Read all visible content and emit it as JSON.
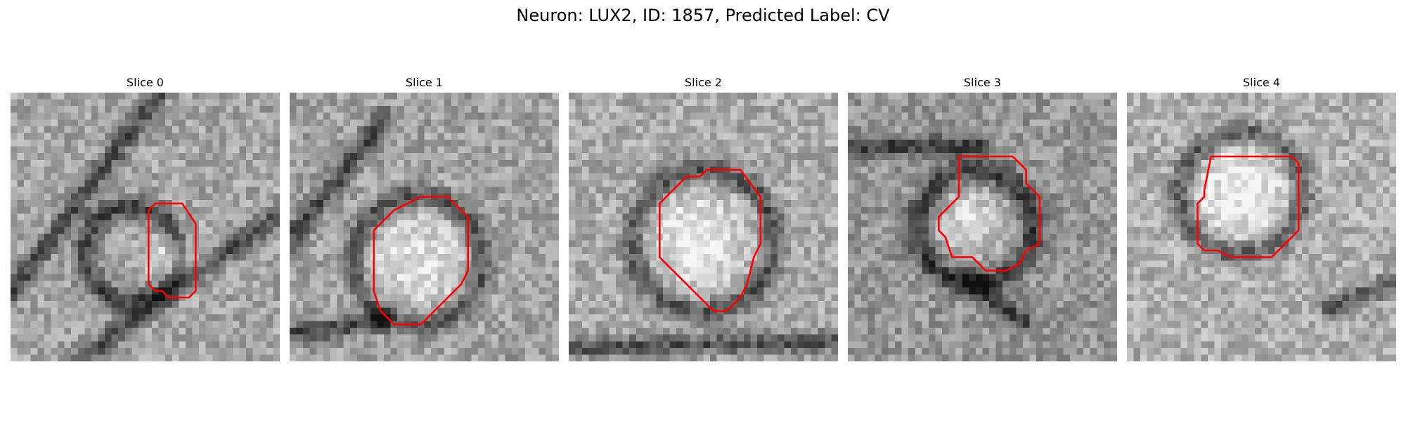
{
  "figure": {
    "title": "Neuron: LUX2, ID: 1857, Predicted Label: CV"
  },
  "panels": [
    {
      "title": "Slice 0",
      "contour": [
        [
          21.5,
          16.5
        ],
        [
          25.5,
          16.5
        ],
        [
          27.5,
          19.5
        ],
        [
          27.5,
          29.5
        ],
        [
          26.5,
          30.5
        ],
        [
          23.5,
          30.5
        ],
        [
          22.5,
          29.5
        ],
        [
          21.5,
          29.5
        ],
        [
          20.5,
          28.5
        ],
        [
          20.5,
          17.5
        ]
      ],
      "image": {
        "ring": [
          18,
          24,
          7.0
        ],
        "blob": [
          24,
          25,
          4.0
        ],
        "dark_lines": [
          [
            0,
            30,
            22,
            0
          ],
          [
            10,
            40,
            40,
            18
          ]
        ],
        "base": 165
      }
    },
    {
      "title": "Slice 1",
      "contour": [
        [
          19.5,
          15.5
        ],
        [
          23.5,
          15.5
        ],
        [
          26.5,
          18.5
        ],
        [
          26.5,
          26.5
        ],
        [
          25.5,
          28.5
        ],
        [
          20.5,
          33.5
        ],
        [
          19.5,
          34.5
        ],
        [
          15.5,
          34.5
        ],
        [
          13.5,
          32.5
        ],
        [
          12.5,
          29.5
        ],
        [
          12.5,
          20.5
        ],
        [
          15.5,
          17.5
        ],
        [
          17.5,
          16.5
        ]
      ],
      "image": {
        "ring": [
          19,
          25,
          9.5
        ],
        "blob": [
          19,
          25,
          8.5
        ],
        "dark_lines": [
          [
            0,
            22,
            14,
            4
          ],
          [
            0,
            36,
            14,
            34
          ]
        ],
        "base": 160
      }
    },
    {
      "title": "Slice 2",
      "contour": [
        [
          17.5,
          12.5
        ],
        [
          19.5,
          12.5
        ],
        [
          20.5,
          11.5
        ],
        [
          25.5,
          11.5
        ],
        [
          28.5,
          15.5
        ],
        [
          28.5,
          22.5
        ],
        [
          27.5,
          24.5
        ],
        [
          26.5,
          28.5
        ],
        [
          25.5,
          30.5
        ],
        [
          23.5,
          32.5
        ],
        [
          21.5,
          32.5
        ],
        [
          15.5,
          26.5
        ],
        [
          14.5,
          25.5
        ],
        [
          13.5,
          24.5
        ],
        [
          13.5,
          16.5
        ],
        [
          15.5,
          14.5
        ]
      ],
      "image": {
        "ring": [
          20,
          22,
          10.5
        ],
        "blob": [
          19,
          22,
          7.5
        ],
        "dark_lines": [
          [
            0,
            38,
            40,
            37
          ]
        ],
        "base": 170
      }
    },
    {
      "title": "Slice 3",
      "contour": [
        [
          16.5,
          9.5
        ],
        [
          24.5,
          9.5
        ],
        [
          26.5,
          11.5
        ],
        [
          26.5,
          13.5
        ],
        [
          28.5,
          15.5
        ],
        [
          28.5,
          22.5
        ],
        [
          26.5,
          23.5
        ],
        [
          25.5,
          25.5
        ],
        [
          23.5,
          26.5
        ],
        [
          20.5,
          26.5
        ],
        [
          18.5,
          24.5
        ],
        [
          15.5,
          24.5
        ],
        [
          14.5,
          21.5
        ],
        [
          13.5,
          20.5
        ],
        [
          13.5,
          18.5
        ],
        [
          16.5,
          15.5
        ]
      ],
      "image": {
        "ring": [
          19,
          20,
          8.5
        ],
        "blob": [
          18,
          19,
          5.0
        ],
        "dark_lines": [
          [
            0,
            8,
            20,
            8
          ],
          [
            18,
            28,
            26,
            34
          ]
        ],
        "base": 150
      }
    },
    {
      "title": "Slice 4",
      "contour": [
        [
          12.5,
          9.5
        ],
        [
          24.5,
          9.5
        ],
        [
          25.5,
          10.5
        ],
        [
          25.5,
          20.5
        ],
        [
          21.5,
          24.5
        ],
        [
          15.5,
          24.5
        ],
        [
          13.5,
          23.5
        ],
        [
          11.5,
          23.5
        ],
        [
          10.5,
          22.5
        ],
        [
          10.5,
          16.5
        ],
        [
          11.5,
          15.5
        ],
        [
          11.5,
          14.5
        ]
      ],
      "image": {
        "ring": [
          17,
          15,
          9.0
        ],
        "blob": [
          17,
          15,
          7.5
        ],
        "dark_lines": [
          [
            30,
            32,
            40,
            28
          ]
        ],
        "base": 175
      }
    }
  ],
  "style": {
    "contour_color": "#ff0000"
  }
}
